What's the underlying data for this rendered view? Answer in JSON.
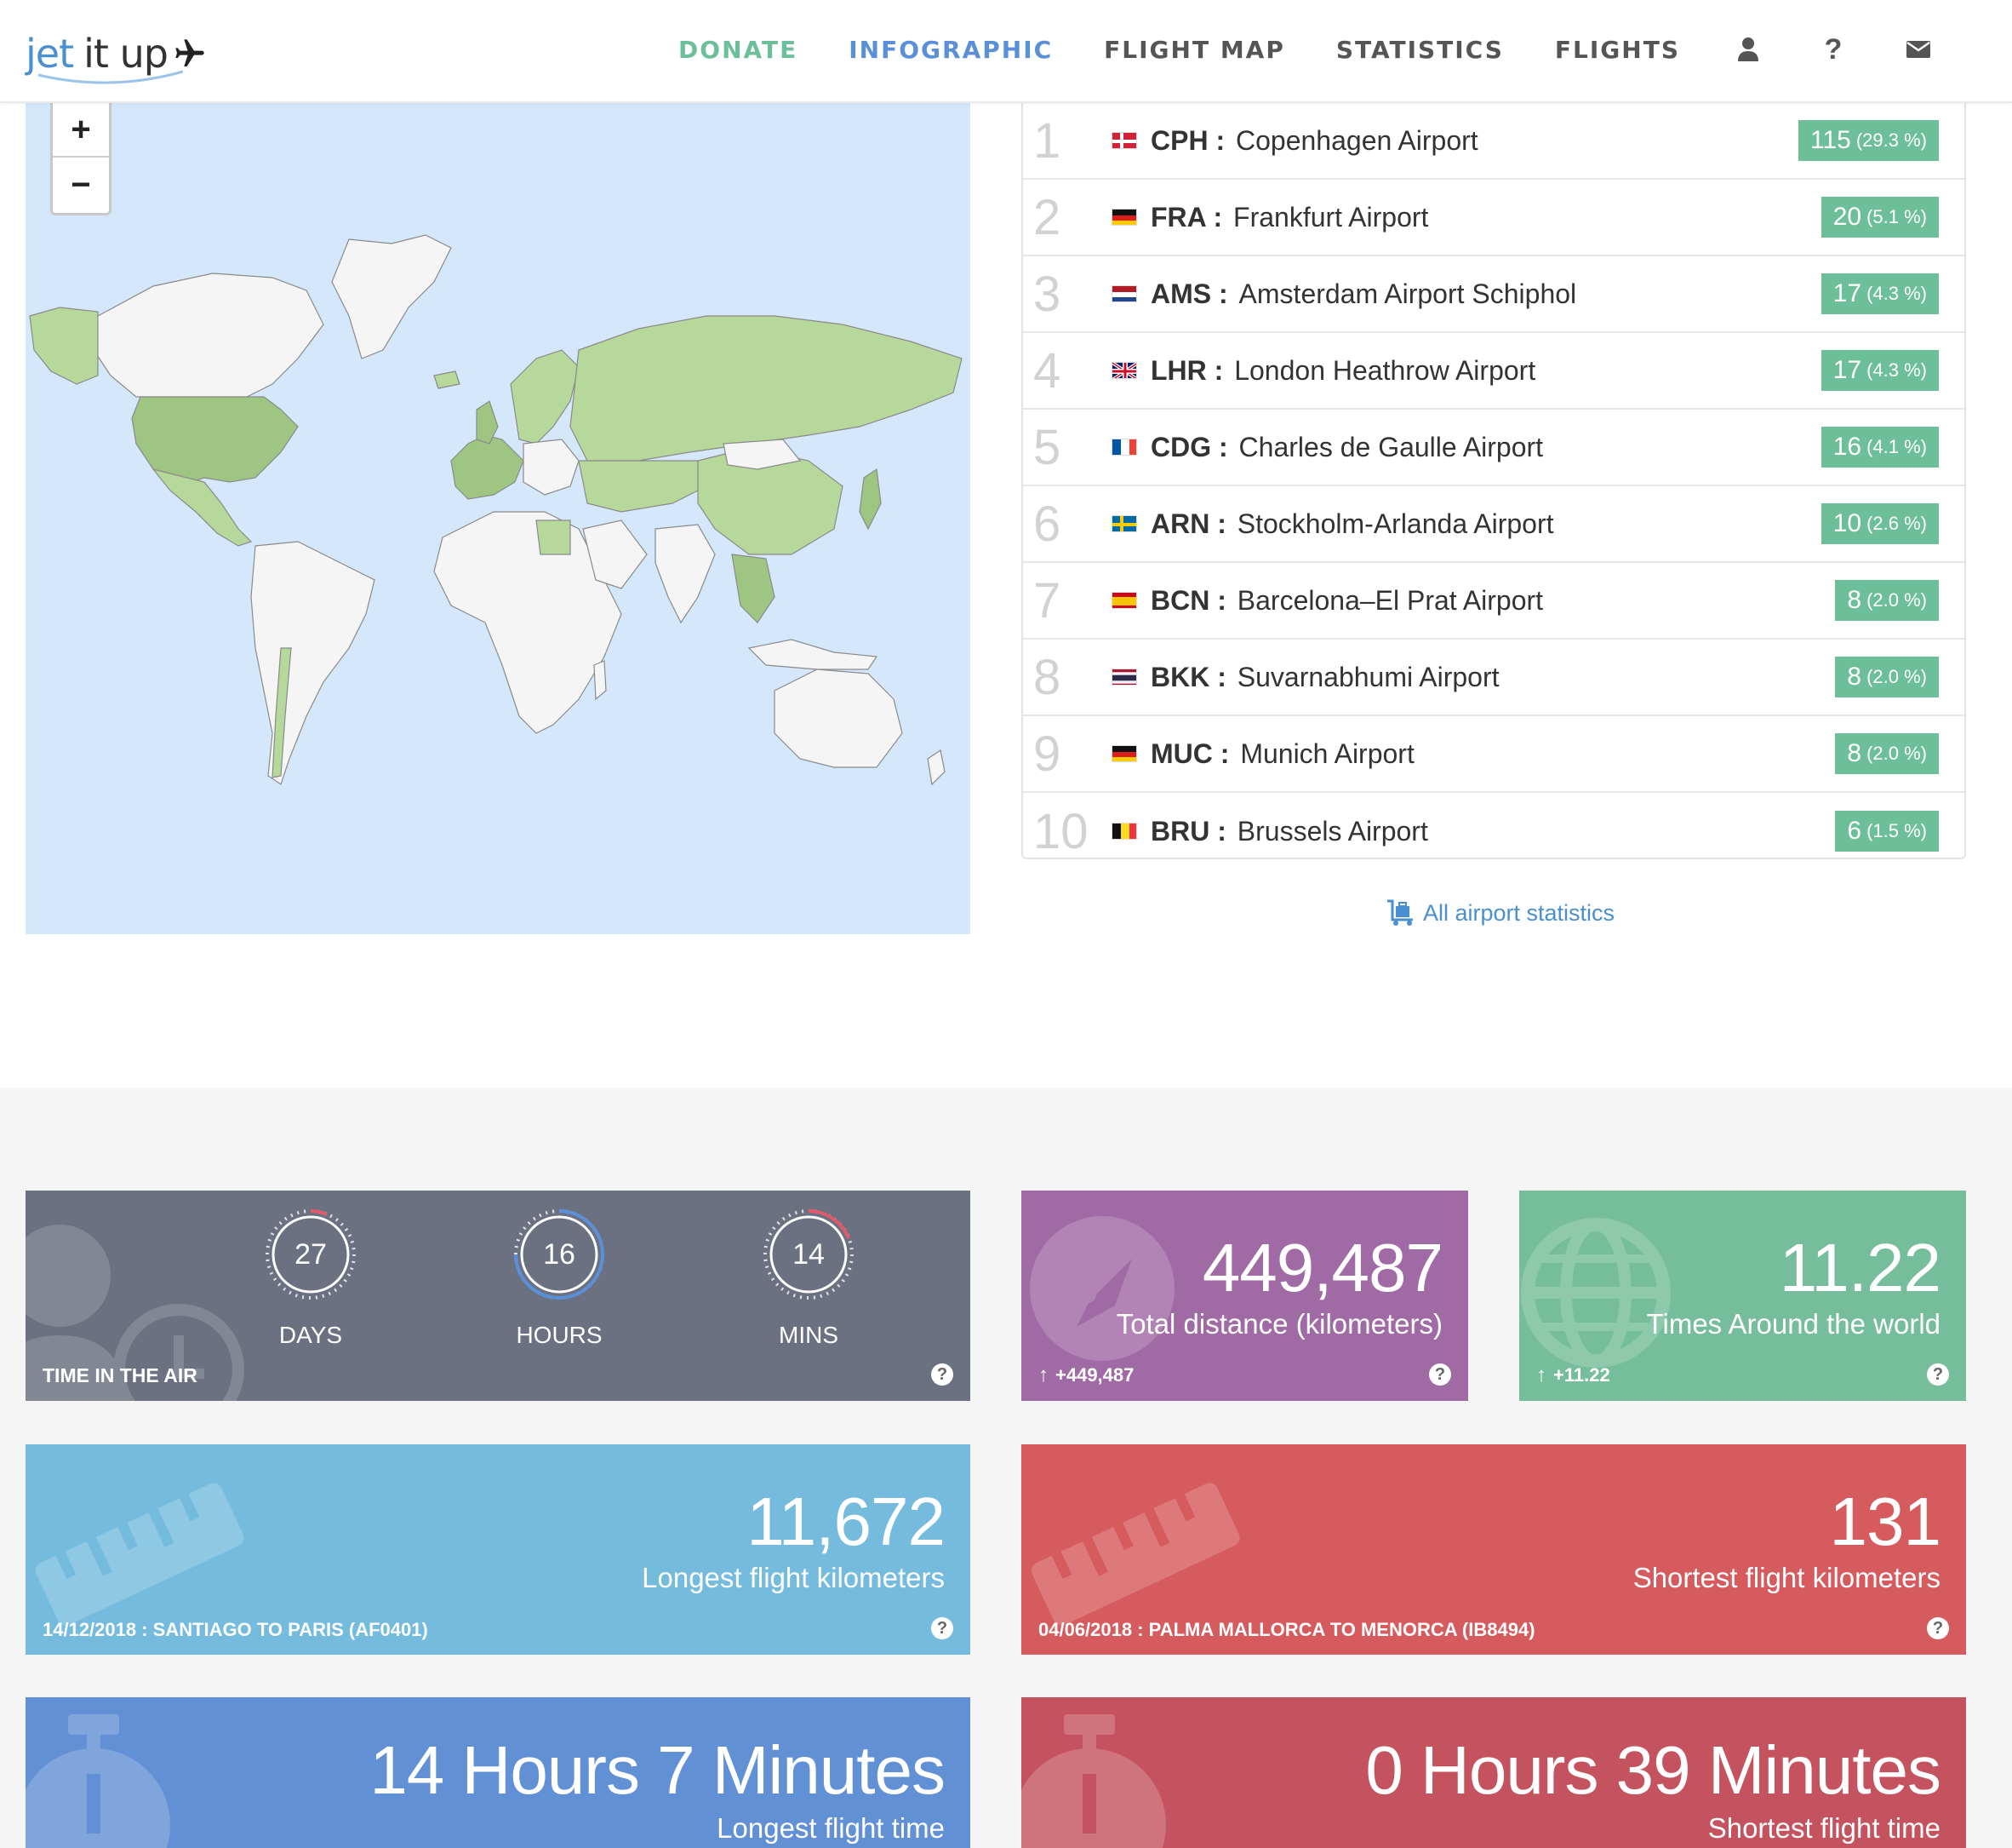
{
  "header": {
    "logo_jet": "jet",
    "logo_itup": "it up",
    "nav": [
      {
        "label": "DONATE"
      },
      {
        "label": "INFOGRAPHIC"
      },
      {
        "label": "FLIGHT MAP"
      },
      {
        "label": "STATISTICS"
      },
      {
        "label": "FLIGHTS"
      }
    ],
    "icons": [
      "user-icon",
      "help-icon",
      "envelope-icon"
    ],
    "help_glyph": "?"
  },
  "map": {
    "zoom_in": "+",
    "zoom_out": "−"
  },
  "airports": [
    {
      "rank": "1",
      "code": "CPH",
      "name": "Copenhagen Airport",
      "count": "115",
      "pct": "(29.3 %)"
    },
    {
      "rank": "2",
      "code": "FRA",
      "name": "Frankfurt Airport",
      "count": "20",
      "pct": "(5.1 %)"
    },
    {
      "rank": "3",
      "code": "AMS",
      "name": "Amsterdam Airport Schiphol",
      "count": "17",
      "pct": "(4.3 %)"
    },
    {
      "rank": "4",
      "code": "LHR",
      "name": "London Heathrow Airport",
      "count": "17",
      "pct": "(4.3 %)"
    },
    {
      "rank": "5",
      "code": "CDG",
      "name": "Charles de Gaulle Airport",
      "count": "16",
      "pct": "(4.1 %)"
    },
    {
      "rank": "6",
      "code": "ARN",
      "name": "Stockholm-Arlanda Airport",
      "count": "10",
      "pct": "(2.6 %)"
    },
    {
      "rank": "7",
      "code": "BCN",
      "name": "Barcelona–El Prat Airport",
      "count": "8",
      "pct": "(2.0 %)"
    },
    {
      "rank": "8",
      "code": "BKK",
      "name": "Suvarnabhumi Airport",
      "count": "8",
      "pct": "(2.0 %)"
    },
    {
      "rank": "9",
      "code": "MUC",
      "name": "Munich Airport",
      "count": "8",
      "pct": "(2.0 %)"
    },
    {
      "rank": "10",
      "code": "BRU",
      "name": "Brussels Airport",
      "count": "6",
      "pct": "(1.5 %)"
    }
  ],
  "all_stats_link": "All airport statistics",
  "time_in_air": {
    "label": "TIME IN THE AIR",
    "days": "27",
    "days_label": "DAYS",
    "hours": "16",
    "hours_label": "HOURS",
    "mins": "14",
    "mins_label": "MINS"
  },
  "distance": {
    "value": "449,487",
    "label": "Total distance (kilometers)",
    "delta": "+449,487"
  },
  "around_world": {
    "value": "11.22",
    "label": "Times Around the world",
    "delta": "+11.22"
  },
  "longest_km": {
    "value": "11,672",
    "label": "Longest flight kilometers",
    "foot": "14/12/2018 : SANTIAGO TO PARIS (AF0401)"
  },
  "shortest_km": {
    "value": "131",
    "label": "Shortest flight kilometers",
    "foot": "04/06/2018 : PALMA MALLORCA TO MENORCA (IB8494)"
  },
  "longest_time": {
    "value": "14 Hours 7 Minutes",
    "label": "Longest flight time"
  },
  "shortest_time": {
    "value": "0 Hours 39 Minutes",
    "label": "Shortest flight time"
  },
  "colors": {
    "accent_green": "#6cbf98",
    "accent_blue": "#5b8fd8",
    "time_card": "#6b7180",
    "distance_card": "#a06aa4",
    "world_card": "#76be9b",
    "longest_card": "#74bbdd",
    "shortest_card": "#d65b5e",
    "longest_time_card": "#6190d4",
    "shortest_time_card": "#c4535f",
    "map_ocean": "#d4e7fb",
    "visited_country": "#b7d89b"
  }
}
